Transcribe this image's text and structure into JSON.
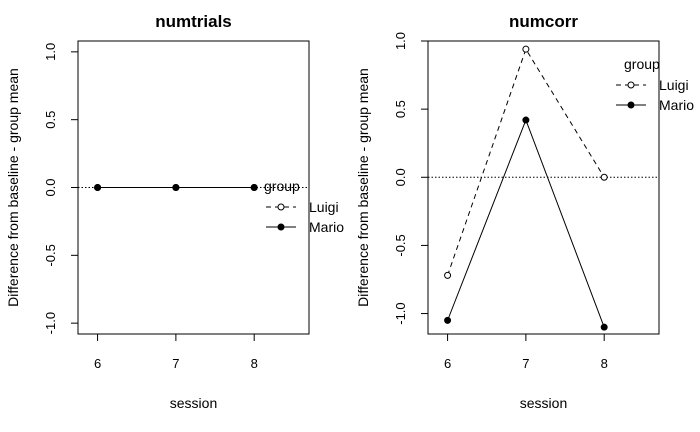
{
  "chart_data": [
    {
      "type": "line",
      "title": "numtrials",
      "xlabel": "session",
      "ylabel": "Difference from baseline - group mean",
      "x": [
        6,
        7,
        8
      ],
      "x_tick_labels": [
        "6",
        "7",
        "8"
      ],
      "xlim": [
        5.75,
        8.7
      ],
      "ylim": [
        -1.08,
        1.08
      ],
      "y_ticks": [
        -1.0,
        -0.5,
        0.0,
        0.5,
        1.0
      ],
      "y_tick_labels": [
        "-1.0",
        "-0.5",
        "0.0",
        "0.5",
        "1.0"
      ],
      "reference_line_y": 0,
      "series": [
        {
          "name": "Luigi",
          "values": [
            0,
            0,
            0
          ],
          "line_style": "dashed",
          "marker": "open-circle"
        },
        {
          "name": "Mario",
          "values": [
            0,
            0,
            0
          ],
          "line_style": "solid",
          "marker": "filled-circle"
        }
      ],
      "legend": {
        "title": "group",
        "placement": "right",
        "entries": [
          "Luigi",
          "Mario"
        ]
      }
    },
    {
      "type": "line",
      "title": "numcorr",
      "xlabel": "session",
      "ylabel": "Difference from baseline - group mean",
      "x": [
        6,
        7,
        8
      ],
      "x_tick_labels": [
        "6",
        "7",
        "8"
      ],
      "xlim": [
        5.75,
        8.7
      ],
      "ylim": [
        -1.15,
        1.0
      ],
      "y_ticks": [
        -1.0,
        -0.5,
        0.0,
        0.5,
        1.0
      ],
      "y_tick_labels": [
        "-1.0",
        "-0.5",
        "0.0",
        "0.5",
        "1.0"
      ],
      "reference_line_y": 0,
      "series": [
        {
          "name": "Luigi",
          "values": [
            -0.72,
            0.94,
            0.0
          ],
          "line_style": "dashed",
          "marker": "open-circle"
        },
        {
          "name": "Mario",
          "values": [
            -1.05,
            0.42,
            -1.1
          ],
          "line_style": "solid",
          "marker": "filled-circle"
        }
      ],
      "legend": {
        "title": "group",
        "placement": "top-right",
        "entries": [
          "Luigi",
          "Mario"
        ]
      }
    }
  ]
}
